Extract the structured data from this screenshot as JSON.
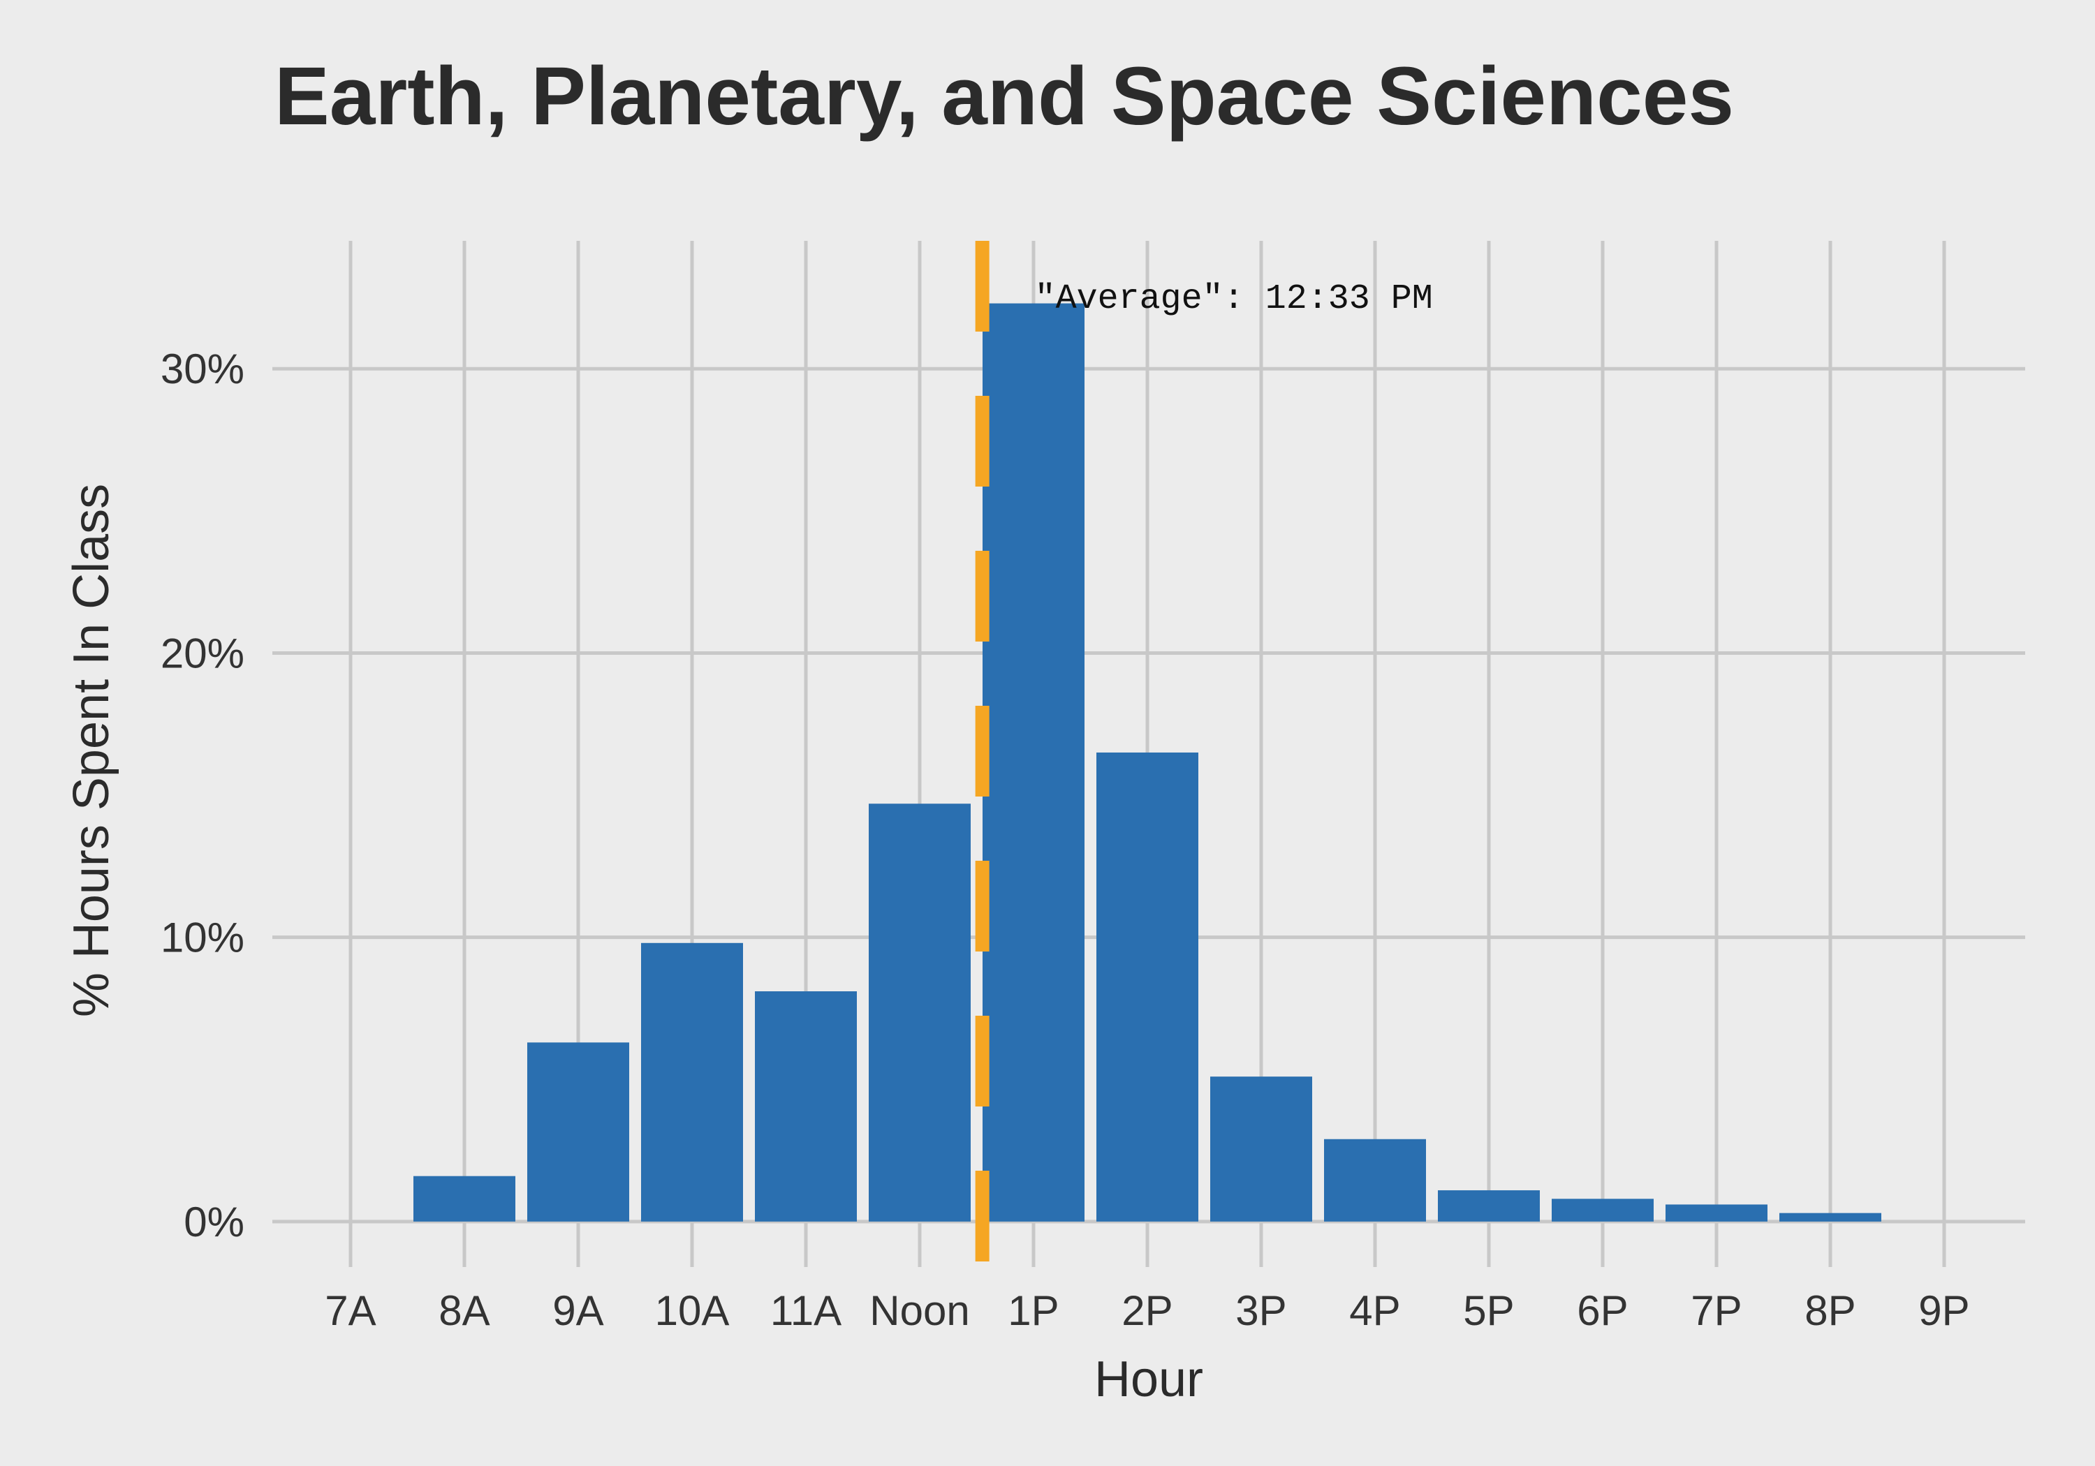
{
  "chart_data": {
    "type": "bar",
    "title": "Earth, Planetary, and Space Sciences",
    "xlabel": "Hour",
    "ylabel": "% Hours Spent In Class",
    "categories": [
      "7A",
      "8A",
      "9A",
      "10A",
      "11A",
      "Noon",
      "1P",
      "2P",
      "3P",
      "4P",
      "5P",
      "6P",
      "7P",
      "8P",
      "9P"
    ],
    "values": [
      0,
      1.6,
      6.3,
      9.8,
      8.1,
      14.7,
      32.3,
      16.5,
      5.1,
      2.9,
      1.1,
      0.8,
      0.6,
      0.3,
      0
    ],
    "value_format": "percent",
    "ylim": [
      -1.6,
      34.5
    ],
    "yticks": [
      0,
      10,
      20,
      30
    ],
    "ytick_labels": [
      "0%",
      "10%",
      "20%",
      "30%"
    ],
    "grid": true,
    "legend": "none",
    "bar_color": "#2a6fb0",
    "annotation": {
      "label": "\"Average\": 12:33 PM",
      "x_position_hours_after_7A": 5.55,
      "color": "#f5a623",
      "style": "dashed vertical line"
    }
  }
}
